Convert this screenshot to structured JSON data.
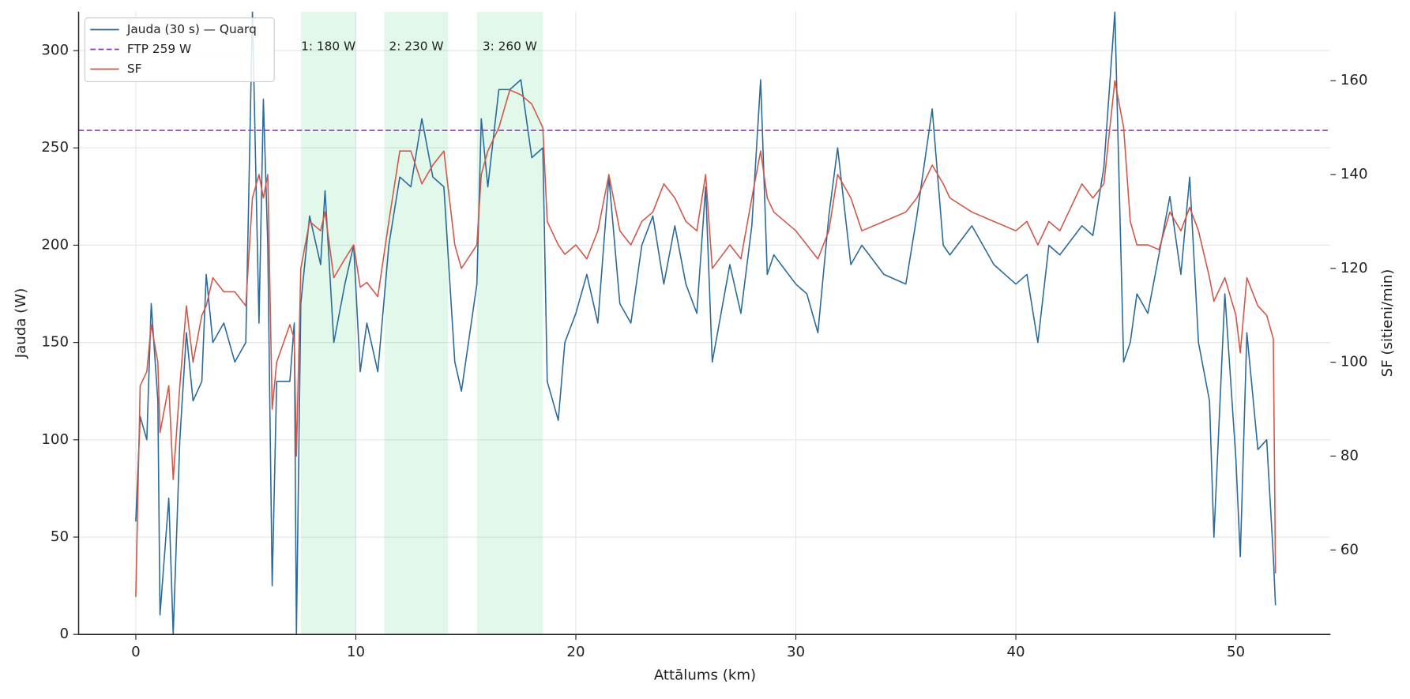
{
  "chart_data": {
    "type": "line",
    "xlabel": "Attālums (km)",
    "ylabel": "Jauda (W)",
    "y2label": "SF (sitieni/min)",
    "x": [
      0.0,
      0.2,
      0.5,
      0.7,
      1.0,
      1.1,
      1.5,
      1.7,
      2.0,
      2.3,
      2.6,
      3.0,
      3.2,
      3.5,
      4.0,
      4.5,
      5.0,
      5.3,
      5.6,
      5.8,
      6.0,
      6.2,
      6.4,
      7.0,
      7.2,
      7.3,
      7.5,
      7.9,
      8.4,
      8.6,
      9.0,
      9.5,
      9.9,
      10.2,
      10.5,
      11.0,
      11.5,
      12.0,
      12.5,
      13.0,
      13.5,
      14.0,
      14.5,
      14.8,
      15.5,
      15.7,
      16.0,
      16.5,
      17.0,
      17.5,
      18.0,
      18.5,
      18.7,
      19.2,
      19.5,
      20.0,
      20.5,
      21.0,
      21.5,
      22.0,
      22.5,
      23.0,
      23.5,
      24.0,
      24.5,
      25.0,
      25.5,
      25.9,
      26.2,
      27.0,
      27.5,
      28.0,
      28.4,
      28.7,
      29.0,
      30.0,
      30.5,
      31.0,
      31.5,
      31.9,
      32.5,
      33.0,
      34.0,
      35.0,
      35.5,
      36.2,
      36.7,
      37.0,
      38.0,
      39.0,
      40.0,
      40.5,
      41.0,
      41.5,
      42.0,
      43.0,
      43.5,
      44.0,
      44.5,
      44.9,
      45.2,
      45.5,
      46.0,
      46.5,
      47.0,
      47.5,
      47.9,
      48.3,
      48.8,
      49.0,
      49.5,
      50.0,
      50.2,
      50.5,
      51.0,
      51.4,
      51.7,
      51.8
    ],
    "series": [
      {
        "name": "Jauda (30 s) — Quarq",
        "color": "#2b6a99",
        "axis": "y",
        "values": [
          58,
          112,
          100,
          170,
          120,
          10,
          70,
          0,
          100,
          155,
          120,
          130,
          185,
          150,
          160,
          140,
          150,
          320,
          160,
          275,
          200,
          25,
          130,
          130,
          160,
          0,
          170,
          215,
          190,
          228,
          150,
          180,
          200,
          135,
          160,
          135,
          200,
          235,
          230,
          265,
          235,
          230,
          140,
          125,
          180,
          265,
          230,
          280,
          280,
          285,
          245,
          250,
          130,
          110,
          150,
          165,
          185,
          160,
          235,
          170,
          160,
          200,
          215,
          180,
          210,
          180,
          165,
          230,
          140,
          190,
          165,
          210,
          285,
          185,
          195,
          180,
          175,
          155,
          215,
          250,
          190,
          200,
          185,
          180,
          215,
          270,
          200,
          195,
          210,
          190,
          180,
          185,
          150,
          200,
          195,
          210,
          205,
          240,
          320,
          140,
          150,
          175,
          165,
          195,
          225,
          185,
          235,
          150,
          120,
          50,
          175,
          90,
          40,
          155,
          95,
          100,
          40,
          15
        ]
      },
      {
        "name": "SF",
        "color": "#d0584a",
        "axis": "y2",
        "values": [
          50,
          95,
          98,
          108,
          100,
          85,
          95,
          75,
          95,
          112,
          100,
          110,
          112,
          118,
          115,
          115,
          112,
          135,
          140,
          135,
          140,
          90,
          100,
          108,
          105,
          80,
          120,
          130,
          128,
          132,
          118,
          122,
          125,
          116,
          117,
          114,
          130,
          145,
          145,
          138,
          142,
          145,
          125,
          120,
          125,
          140,
          145,
          150,
          158,
          157,
          155,
          150,
          130,
          125,
          123,
          125,
          122,
          128,
          140,
          128,
          125,
          130,
          132,
          138,
          135,
          130,
          128,
          140,
          120,
          125,
          122,
          135,
          145,
          135,
          132,
          128,
          125,
          122,
          128,
          140,
          135,
          128,
          130,
          132,
          135,
          142,
          138,
          135,
          132,
          130,
          128,
          130,
          125,
          130,
          128,
          138,
          135,
          138,
          160,
          150,
          130,
          125,
          125,
          124,
          132,
          128,
          133,
          128,
          118,
          113,
          118,
          110,
          102,
          118,
          112,
          110,
          105,
          55
        ]
      }
    ],
    "reference_line": {
      "name": "FTP 259 W",
      "value": 259,
      "color": "#8e3fb0"
    },
    "regions": [
      {
        "start": 7.5,
        "end": 10.0,
        "label": "1: 180 W"
      },
      {
        "start": 11.3,
        "end": 14.2,
        "label": "2: 230 W"
      },
      {
        "start": 15.5,
        "end": 18.5,
        "label": "3: 260 W"
      }
    ],
    "region_color": "#2ecc71",
    "xlim": [
      -2.6,
      54.3
    ],
    "ylim": [
      0,
      320
    ],
    "y2lim": [
      42,
      174.7
    ],
    "xticks": [
      0,
      10,
      20,
      30,
      40,
      50
    ],
    "yticks": [
      0,
      50,
      100,
      150,
      200,
      250,
      300
    ],
    "y2ticks": [
      60,
      80,
      100,
      120,
      140,
      160
    ],
    "grid": true,
    "legend": "upper left"
  }
}
